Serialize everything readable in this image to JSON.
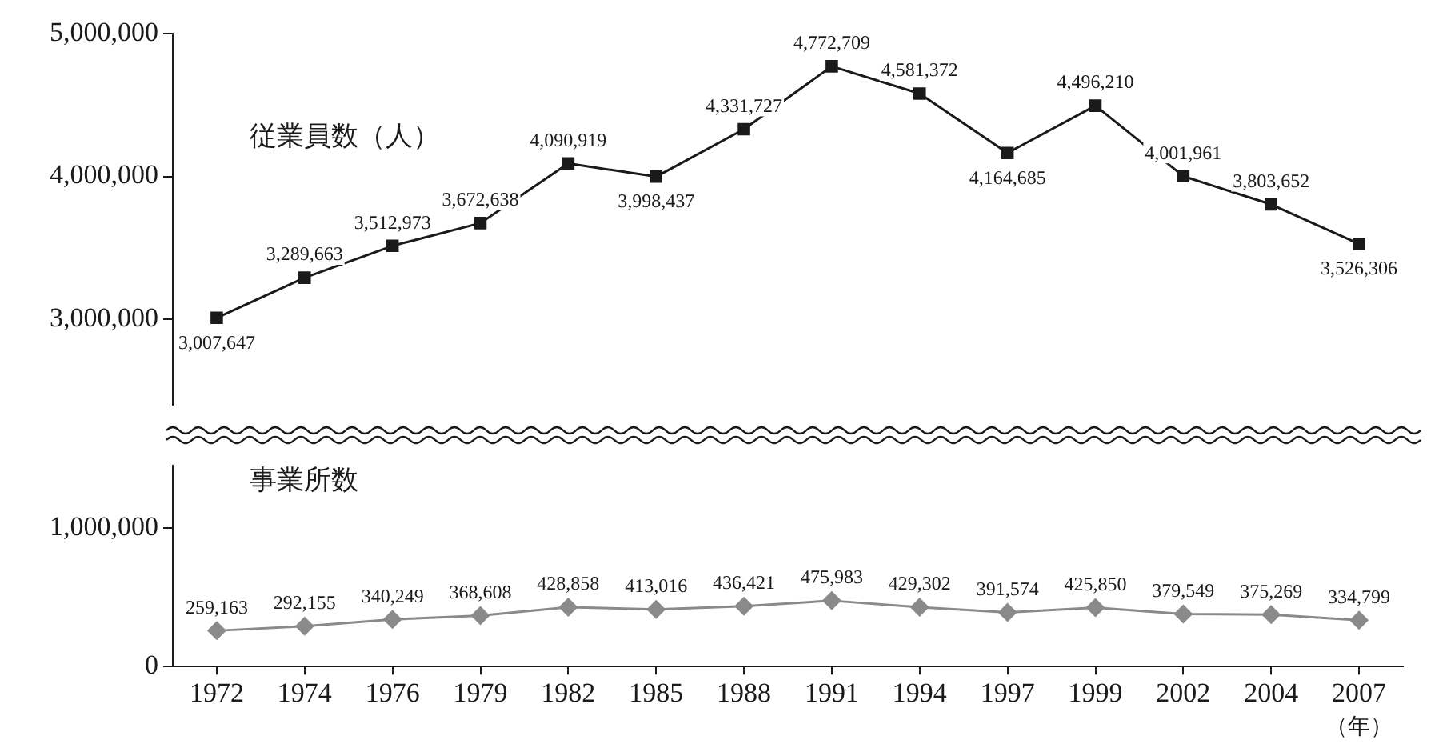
{
  "chart_data": [
    {
      "type": "line",
      "categories": [
        "1972",
        "1974",
        "1976",
        "1979",
        "1982",
        "1985",
        "1988",
        "1991",
        "1994",
        "1997",
        "1999",
        "2002",
        "2004",
        "2007"
      ],
      "series": [
        {
          "name": "従業員数（人）",
          "color": "#1a1a1a",
          "values": [
            3007647,
            3289663,
            3512973,
            3672638,
            4090919,
            3998437,
            4331727,
            4772709,
            4581372,
            4164685,
            4496210,
            4001961,
            3803652,
            3526306
          ],
          "value_labels": [
            "3,007,647",
            "3,289,663",
            "3,512,973",
            "3,672,638",
            "4,090,919",
            "3,998,437",
            "4,331,727",
            "4,772,709",
            "4,581,372",
            "4,164,685",
            "4,496,210",
            "4,001,961",
            "3,803,652",
            "3,526,306"
          ]
        }
      ],
      "ylim": [
        2400000,
        5000000
      ],
      "yticks": [
        {
          "value": 3000000,
          "label": "3,000,000"
        },
        {
          "value": 4000000,
          "label": "4,000,000"
        },
        {
          "value": 5000000,
          "label": "5,000,000"
        }
      ],
      "grid": false,
      "legend": false,
      "tick_labels": "y",
      "marker": "square"
    },
    {
      "type": "line",
      "categories": [
        "1972",
        "1974",
        "1976",
        "1979",
        "1982",
        "1985",
        "1988",
        "1991",
        "1994",
        "1997",
        "1999",
        "2002",
        "2004",
        "2007"
      ],
      "xlabel": "（年）",
      "series": [
        {
          "name": "事業所数",
          "color": "#8a8a8a",
          "values": [
            259163,
            292155,
            340249,
            368608,
            428858,
            413016,
            436421,
            475983,
            429302,
            391574,
            425850,
            379549,
            375269,
            334799
          ],
          "value_labels": [
            "259,163",
            "292,155",
            "340,249",
            "368,608",
            "428,858",
            "413,016",
            "436,421",
            "475,983",
            "429,302",
            "391,574",
            "425,850",
            "379,549",
            "375,269",
            "334,799"
          ]
        }
      ],
      "ylim": [
        0,
        1450000
      ],
      "yticks": [
        {
          "value": 0,
          "label": "0"
        },
        {
          "value": 1000000,
          "label": "1,000,000"
        }
      ],
      "grid": false,
      "legend": false,
      "marker": "diamond"
    }
  ]
}
